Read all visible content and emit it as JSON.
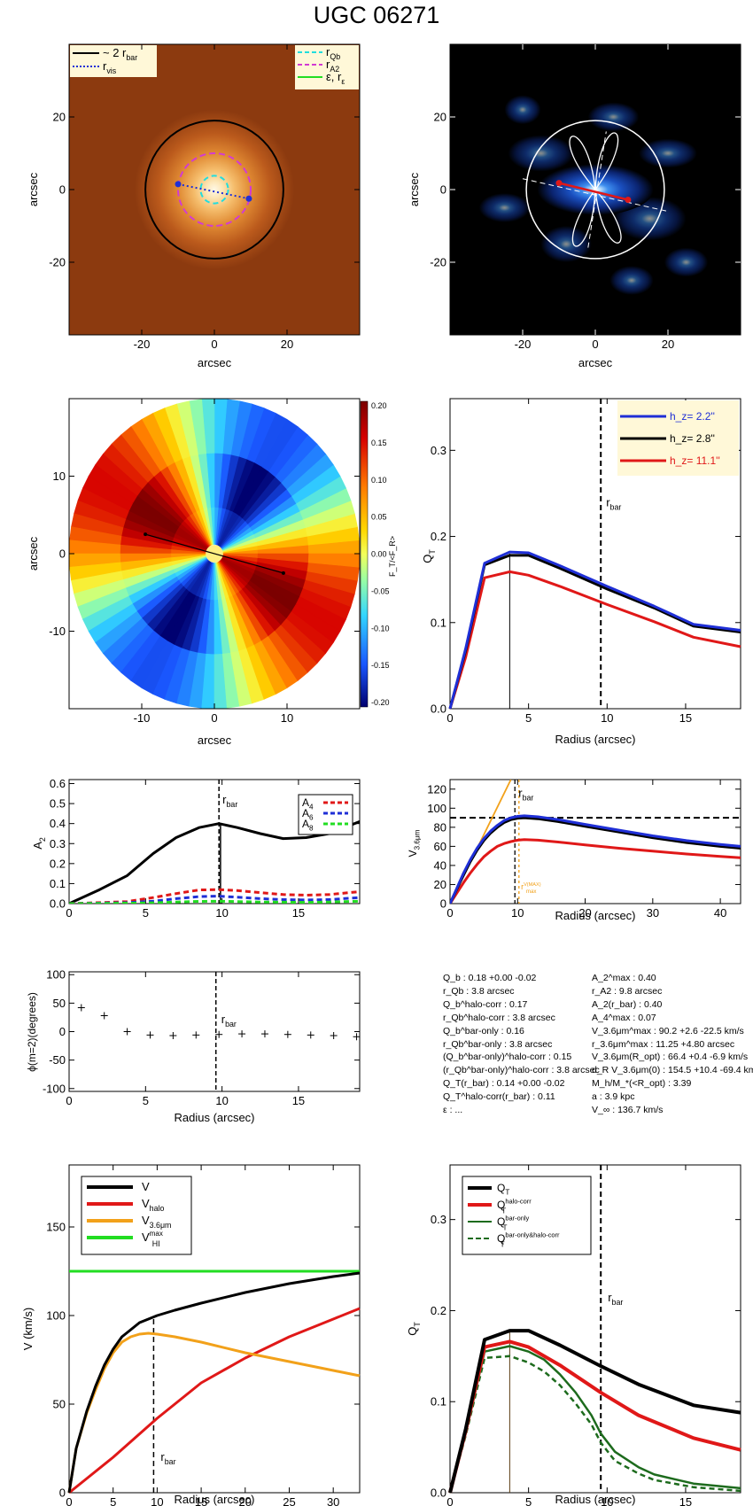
{
  "title": "UGC 06271",
  "colors": {
    "blue": "#1f2fd6",
    "red": "#e01818",
    "black": "#000000",
    "orange": "#f2a11a",
    "green": "#22dd22",
    "darkgreen": "#1d6b1d",
    "cyan": "#22dddd",
    "magenta": "#d23bd2"
  },
  "chart_data": [
    {
      "type": "image",
      "panel": "image-3.6um",
      "xlabel": "arcsec",
      "ylabel": "arcsec",
      "xlim": [
        -40,
        40
      ],
      "ylim": [
        -40,
        40
      ],
      "xticks": [
        "-20",
        "0",
        "20"
      ],
      "yticks": [
        "-20",
        "0",
        "20"
      ],
      "circles": {
        "two_rbar": 19,
        "rA2": 10,
        "rQb": 3.8
      },
      "rvis_endpoints": [
        [
          -10,
          1.5
        ],
        [
          9.5,
          -2.5
        ]
      ],
      "legend_left": [
        {
          "label": "~ 2 r",
          "sub": "bar",
          "color": "#000000",
          "style": "solid"
        },
        {
          "label": "r",
          "sub": "vis",
          "color": "#1f2fd6",
          "style": "dotted"
        }
      ],
      "legend_right": [
        {
          "label": "r",
          "sub": "Qb",
          "color": "#22dddd",
          "style": "dashed"
        },
        {
          "label": "r",
          "sub": "A2",
          "color": "#d23bd2",
          "style": "dashed"
        },
        {
          "label": "ε, r",
          "sub": "ε",
          "color": "#22dd22",
          "style": "solid"
        }
      ]
    },
    {
      "type": "image",
      "panel": "image-residual",
      "xlabel": "arcsec",
      "ylabel": "arcsec",
      "xlim": [
        -40,
        40
      ],
      "ylim": [
        -40,
        40
      ],
      "xticks": [
        "-20",
        "0",
        "20"
      ],
      "yticks": [
        "-20",
        "0",
        "20"
      ],
      "circle_radius": 19,
      "red_bar_endpoints": [
        [
          -10,
          1.8
        ],
        [
          9,
          -2.8
        ]
      ]
    },
    {
      "type": "heatmap",
      "panel": "force-ratio-map",
      "xlabel": "arcsec",
      "ylabel": "arcsec",
      "xlim": [
        -20,
        20
      ],
      "ylim": [
        -20,
        20
      ],
      "xticks": [
        "-10",
        "0",
        "10"
      ],
      "yticks": [
        "-10",
        "0",
        "10"
      ],
      "colorbar_label": "F_T/<F_R>",
      "colorbar_ticks": [
        "0.20",
        "0.15",
        "0.10",
        "0.05",
        "0.00",
        "-0.05",
        "-0.10",
        "-0.15",
        "-0.20"
      ],
      "bar_endpoints": [
        [
          -9.5,
          2.5
        ],
        [
          9.5,
          -2.5
        ]
      ]
    },
    {
      "type": "line",
      "panel": "qt-hz",
      "xlabel": "Radius (arcsec)",
      "ylabel": "Q_T",
      "xlim": [
        0,
        18.5
      ],
      "ylim": [
        0,
        0.36
      ],
      "xticks": [
        0,
        5,
        10,
        15
      ],
      "yticks": [
        "0.0",
        "0.1",
        "0.2",
        "0.3"
      ],
      "rbar": 9.6,
      "rQb": 3.8,
      "rbar_label": "r",
      "rbar_sub": "bar",
      "series": [
        {
          "name": "h_z=  2.2''",
          "color": "#1f2fd6",
          "x": [
            0,
            0.5,
            1,
            2.2,
            3.8,
            5,
            7,
            10,
            13,
            15.5,
            18.5
          ],
          "values": [
            0,
            0.035,
            0.07,
            0.169,
            0.182,
            0.181,
            0.166,
            0.142,
            0.119,
            0.098,
            0.091
          ]
        },
        {
          "name": "h_z=  2.8''",
          "color": "#000000",
          "x": [
            0,
            0.5,
            1,
            2.2,
            3.8,
            5,
            7,
            10,
            13,
            15.5,
            18.5
          ],
          "values": [
            0,
            0.034,
            0.068,
            0.167,
            0.178,
            0.178,
            0.163,
            0.139,
            0.117,
            0.096,
            0.089
          ]
        },
        {
          "name": "h_z= 11.1''",
          "color": "#e01818",
          "x": [
            0,
            0.5,
            1,
            2.2,
            3.8,
            5,
            7,
            10,
            13,
            15.5,
            18.5
          ],
          "values": [
            0,
            0.03,
            0.06,
            0.152,
            0.159,
            0.155,
            0.142,
            0.121,
            0.101,
            0.083,
            0.072
          ]
        }
      ]
    },
    {
      "type": "line",
      "panel": "a2",
      "xlabel": "",
      "ylabel": "A_2",
      "xlim": [
        0,
        19
      ],
      "ylim": [
        0,
        0.62
      ],
      "xticks": [
        0,
        5,
        10,
        15
      ],
      "yticks": [
        "0.0",
        "0.1",
        "0.2",
        "0.3",
        "0.4",
        "0.5",
        "0.6"
      ],
      "rbar": 9.8,
      "series": [
        {
          "name": "A2",
          "color": "#000000",
          "x": [
            0,
            2,
            3.8,
            5.5,
            7,
            8.5,
            9.8,
            11,
            12.5,
            14,
            15.5,
            17,
            19
          ],
          "values": [
            0,
            0.07,
            0.14,
            0.25,
            0.33,
            0.38,
            0.4,
            0.38,
            0.35,
            0.325,
            0.33,
            0.35,
            0.41
          ]
        },
        {
          "name": "A_4",
          "color": "#e01818",
          "x": [
            0,
            2,
            3.8,
            5.5,
            7,
            8.5,
            9.8,
            11,
            12.5,
            14,
            15.5,
            17,
            19
          ],
          "values": [
            0,
            0.005,
            0.01,
            0.03,
            0.05,
            0.068,
            0.07,
            0.065,
            0.055,
            0.045,
            0.042,
            0.045,
            0.06
          ]
        },
        {
          "name": "A_6",
          "color": "#1f2fd6",
          "x": [
            0,
            2,
            3.8,
            5.5,
            7,
            8.5,
            9.8,
            11,
            12.5,
            14,
            15.5,
            17,
            19
          ],
          "values": [
            0,
            0.002,
            0.005,
            0.012,
            0.025,
            0.035,
            0.037,
            0.032,
            0.025,
            0.02,
            0.018,
            0.02,
            0.03
          ]
        },
        {
          "name": "A_8",
          "color": "#22dd22",
          "x": [
            0,
            2,
            3.8,
            5.5,
            7,
            8.5,
            9.8,
            11,
            12.5,
            14,
            15.5,
            17,
            19
          ],
          "values": [
            0,
            0.001,
            0.002,
            0.004,
            0.008,
            0.011,
            0.012,
            0.01,
            0.008,
            0.007,
            0.006,
            0.008,
            0.012
          ]
        }
      ]
    },
    {
      "type": "line",
      "panel": "v36",
      "xlabel": "Radius (arcsec)",
      "ylabel": "V_3.6um (km s⁻¹)",
      "xlim": [
        0,
        43
      ],
      "ylim": [
        0,
        130
      ],
      "xticks": [
        0,
        10,
        20,
        30,
        40
      ],
      "yticks": [
        "0",
        "20",
        "40",
        "60",
        "80",
        "100",
        "120"
      ],
      "rbar": 9.6,
      "rbar_label": "r",
      "rbar_sub": "bar",
      "hline": 90,
      "rmax_label": "r",
      "rmax_sup": "V(MAX)",
      "rmax_sub": "max",
      "series": [
        {
          "name": "blue",
          "color": "#1f2fd6",
          "x": [
            0,
            1,
            2,
            3,
            4,
            5,
            6,
            7,
            8,
            9,
            10,
            11,
            13,
            16,
            20,
            25,
            30,
            35,
            40,
            43
          ],
          "values": [
            0,
            16,
            32,
            46,
            58,
            68,
            76,
            82,
            87,
            90,
            91.5,
            92,
            91,
            88,
            83,
            77,
            71,
            66,
            62,
            60
          ]
        },
        {
          "name": "black",
          "color": "#000000",
          "x": [
            0,
            1,
            2,
            3,
            4,
            5,
            6,
            7,
            8,
            9,
            10,
            11,
            13,
            16,
            20,
            25,
            30,
            35,
            40,
            43
          ],
          "values": [
            0,
            15,
            30,
            44,
            56,
            66,
            74,
            80,
            85,
            88,
            89.5,
            90,
            89,
            86,
            81,
            75,
            69,
            64,
            60,
            58
          ]
        },
        {
          "name": "red",
          "color": "#e01818",
          "x": [
            0,
            1,
            2,
            3,
            4,
            5,
            6,
            7,
            8,
            9,
            10,
            11,
            13,
            16,
            20,
            25,
            30,
            35,
            40,
            43
          ],
          "values": [
            0,
            11,
            22,
            32,
            41,
            49,
            55,
            60,
            63,
            65,
            66.5,
            67,
            66.5,
            64.5,
            61.5,
            58,
            55,
            52,
            49.5,
            48
          ]
        },
        {
          "name": "orange",
          "color": "#f2a11a",
          "x": [
            0,
            9
          ],
          "values": [
            0,
            130
          ]
        }
      ]
    },
    {
      "type": "scatter",
      "panel": "phase",
      "xlabel": "Radius (arcsec)",
      "ylabel": "ϕ(m=2)(degrees)",
      "xlim": [
        0,
        19
      ],
      "ylim": [
        -105,
        105
      ],
      "xticks": [
        0,
        5,
        10,
        15
      ],
      "yticks": [
        "-100",
        "-50",
        "0",
        "50",
        "100"
      ],
      "rbar": 9.6,
      "rbar_label": "r",
      "rbar_sub": "bar",
      "x": [
        0.8,
        2.3,
        3.8,
        5.3,
        6.8,
        8.3,
        9.8,
        11.3,
        12.8,
        14.3,
        15.8,
        17.3,
        18.8
      ],
      "values": [
        42,
        28,
        0,
        -6,
        -7,
        -6,
        -5,
        -4,
        -4,
        -5,
        -6,
        -7,
        -9
      ]
    },
    {
      "type": "line",
      "panel": "rotation-curve",
      "xlabel": "Radius (arcsec)",
      "ylabel": "V (km/s)",
      "xlim": [
        0,
        33
      ],
      "ylim": [
        0,
        185
      ],
      "xticks": [
        0,
        5,
        10,
        15,
        20,
        25,
        30
      ],
      "yticks": [
        "0",
        "50",
        "100",
        "150"
      ],
      "rbar": 9.6,
      "rbar_label": "r",
      "rbar_sub": "bar",
      "series": [
        {
          "name": "V",
          "color": "#000000",
          "x": [
            0,
            0.8,
            2,
            3,
            4,
            5,
            6,
            7,
            8,
            9,
            10,
            12,
            15,
            20,
            25,
            30,
            33
          ],
          "values": [
            0,
            25,
            46,
            60,
            72,
            81,
            88,
            92,
            96,
            98,
            100,
            103,
            107,
            113,
            118,
            122,
            124
          ]
        },
        {
          "name": "V_halo",
          "color": "#e01818",
          "x": [
            0,
            2,
            5,
            10,
            15,
            20,
            25,
            30,
            33
          ],
          "values": [
            0,
            8,
            20,
            42,
            62,
            76,
            88,
            98,
            104
          ]
        },
        {
          "name": "V_3.6um",
          "color": "#f2a11a",
          "x": [
            0,
            0.8,
            2,
            3,
            4,
            5,
            6,
            7,
            8,
            9,
            10,
            12,
            15,
            20,
            25,
            30,
            33
          ],
          "values": [
            0,
            25,
            45,
            58,
            70,
            79,
            85,
            88,
            89.5,
            90,
            89.5,
            88,
            85,
            79,
            74,
            69,
            66
          ]
        },
        {
          "name": "V_HI^max",
          "color": "#22dd22",
          "x": [
            0,
            33
          ],
          "values": [
            125,
            125
          ]
        }
      ]
    },
    {
      "type": "line",
      "panel": "qt-corr",
      "xlabel": "Radius (arcsec)",
      "ylabel": "Q_T",
      "xlim": [
        0,
        18.5
      ],
      "ylim": [
        0,
        0.36
      ],
      "xticks": [
        0,
        5,
        10,
        15
      ],
      "yticks": [
        "0.0",
        "0.1",
        "0.2",
        "0.3"
      ],
      "rbar": 9.6,
      "rQb": 3.8,
      "rbar_label": "r",
      "rbar_sub": "bar",
      "series": [
        {
          "name": "Q_T",
          "color": "#000000",
          "x": [
            0,
            1,
            2.2,
            3.8,
            5,
            7,
            9.6,
            12,
            15.5,
            18.5
          ],
          "values": [
            0,
            0.07,
            0.168,
            0.178,
            0.178,
            0.162,
            0.139,
            0.119,
            0.096,
            0.088
          ]
        },
        {
          "name": "Q_T^halo-corr",
          "color": "#e01818",
          "x": [
            0,
            1,
            2.2,
            3.8,
            5,
            7,
            9.6,
            12,
            15.5,
            18.5
          ],
          "values": [
            0,
            0.068,
            0.16,
            0.166,
            0.16,
            0.14,
            0.11,
            0.085,
            0.06,
            0.047
          ]
        },
        {
          "name": "Q_T^bar-only",
          "color": "#1d6b1d",
          "x": [
            0,
            1,
            2.2,
            3.8,
            5,
            6,
            7,
            8,
            9,
            9.6,
            10.5,
            12,
            13,
            15.5,
            18.5
          ],
          "values": [
            0,
            0.065,
            0.155,
            0.161,
            0.155,
            0.146,
            0.13,
            0.11,
            0.085,
            0.065,
            0.045,
            0.028,
            0.02,
            0.01,
            0.005
          ]
        },
        {
          "name": "Q_T^bar-only&halo-corr",
          "color": "#1d6b1d",
          "x": [
            0,
            1,
            2.2,
            3.8,
            5,
            6,
            7,
            8,
            9,
            9.6,
            10.5,
            12,
            13,
            15.5,
            18.5
          ],
          "values": [
            0,
            0.063,
            0.148,
            0.15,
            0.143,
            0.133,
            0.118,
            0.098,
            0.075,
            0.055,
            0.035,
            0.021,
            0.014,
            0.006,
            0.002
          ]
        }
      ]
    }
  ],
  "legends": {
    "hz": [
      "h_z=  2.2''",
      "h_z=  2.8''",
      "h_z= 11.1''"
    ],
    "am": [
      "A_4",
      "A_6",
      "A_8"
    ],
    "rc": [
      "V",
      "V_halo",
      "V_3.6um",
      "V_HI^max"
    ],
    "qc": [
      "Q_T",
      "Q_T^halo-corr",
      "Q_T^bar-only",
      "Q_T^bar-only&halo-corr"
    ]
  },
  "stats": {
    "left": [
      "Q_b :  0.18 +0.00 -0.02",
      "r_Qb :  3.8  arcsec",
      "Q_b^halo-corr :  0.17",
      "r_Qb^halo-corr :  3.8 arcsec",
      "Q_b^bar-only :  0.16",
      "r_Qb^bar-only :  3.8 arcsec",
      "(Q_b^bar-only)^halo-corr :  0.15",
      "(r_Qb^bar-only)^halo-corr :  3.8 arcsec",
      "Q_T(r_bar) :  0.14 +0.00 -0.02",
      "Q_T^halo-corr(r_bar) :  0.11",
      "ε : ..."
    ],
    "right": [
      "A_2^max :  0.40",
      "r_A2 :  9.8 arcsec",
      "A_2(r_bar) :  0.40",
      "A_4^max :  0.07",
      "V_3.6μm^max :  90.2 +2.6 -22.5 km/s",
      "r_3.6μm^max :  11.25 +4.80 arcsec",
      "V_3.6μm(R_opt) :  66.4 +0.4 -6.9 km/s",
      "d_R V_3.6μm(0) :  154.5 +10.4 -69.4 km/s/kpc",
      "M_h/M_*(<R_opt) :  3.39",
      "a :  3.9 kpc",
      "V_∞ :  136.7 km/s"
    ]
  }
}
